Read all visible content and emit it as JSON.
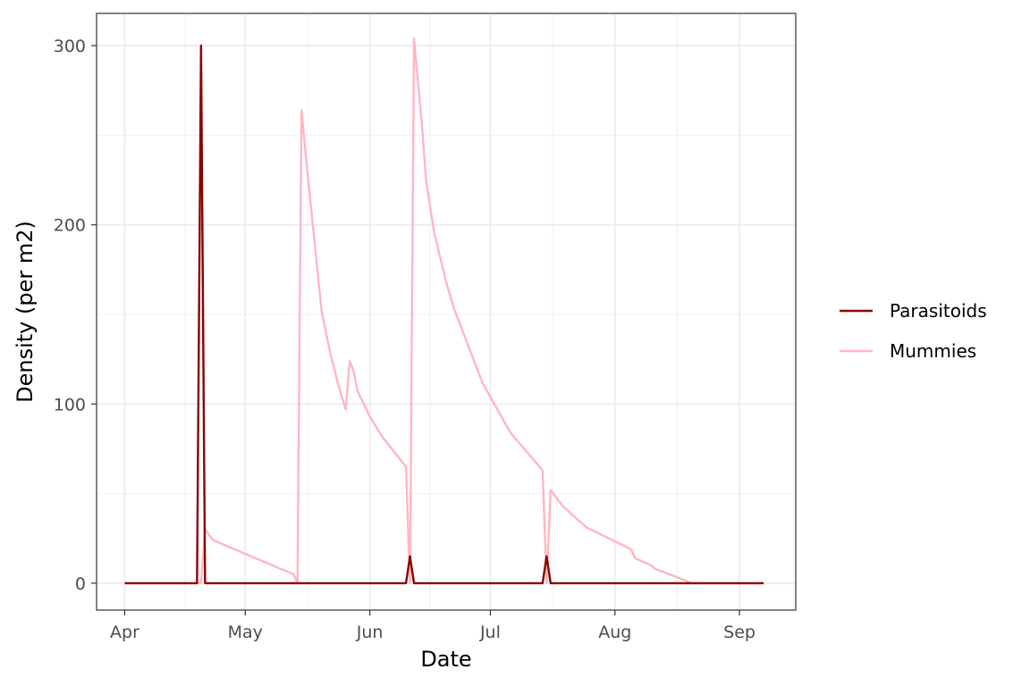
{
  "chart_data": {
    "type": "line",
    "xlabel": "Date",
    "ylabel": "Density (per m2)",
    "x_ticks": [
      {
        "label": "Apr",
        "date": "2021-04-01"
      },
      {
        "label": "May",
        "date": "2021-05-01"
      },
      {
        "label": "Jun",
        "date": "2021-06-01"
      },
      {
        "label": "Jul",
        "date": "2021-07-01"
      },
      {
        "label": "Aug",
        "date": "2021-08-01"
      },
      {
        "label": "Sep",
        "date": "2021-09-01"
      }
    ],
    "y_ticks": [
      0,
      100,
      200,
      300
    ],
    "xlim": [
      "2021-03-25",
      "2021-09-15"
    ],
    "ylim": [
      -15,
      318
    ],
    "grid": true,
    "legend_position": "right",
    "series": [
      {
        "name": "Parasitoids",
        "color": "#8B0000",
        "points": [
          [
            "2021-04-01",
            0
          ],
          [
            "2021-04-19",
            0
          ],
          [
            "2021-04-20",
            300
          ],
          [
            "2021-04-21",
            0
          ],
          [
            "2021-06-10",
            0
          ],
          [
            "2021-06-11",
            15
          ],
          [
            "2021-06-12",
            0
          ],
          [
            "2021-07-14",
            0
          ],
          [
            "2021-07-15",
            15
          ],
          [
            "2021-07-16",
            0
          ],
          [
            "2021-09-07",
            0
          ]
        ]
      },
      {
        "name": "Mummies",
        "color": "#FFB6C1",
        "points": [
          [
            "2021-04-01",
            0
          ],
          [
            "2021-04-20",
            0
          ],
          [
            "2021-04-21",
            30
          ],
          [
            "2021-04-23",
            24
          ],
          [
            "2021-05-13",
            5
          ],
          [
            "2021-05-14",
            0
          ],
          [
            "2021-05-15",
            264
          ],
          [
            "2021-05-16",
            240
          ],
          [
            "2021-05-18",
            196
          ],
          [
            "2021-05-20",
            152
          ],
          [
            "2021-05-22",
            130
          ],
          [
            "2021-05-24",
            112
          ],
          [
            "2021-05-26",
            97
          ],
          [
            "2021-05-27",
            124
          ],
          [
            "2021-05-28",
            118
          ],
          [
            "2021-05-29",
            107
          ],
          [
            "2021-06-01",
            93
          ],
          [
            "2021-06-04",
            82
          ],
          [
            "2021-06-10",
            65
          ],
          [
            "2021-06-11",
            0
          ],
          [
            "2021-06-12",
            304
          ],
          [
            "2021-06-14",
            255
          ],
          [
            "2021-06-15",
            225
          ],
          [
            "2021-06-17",
            196
          ],
          [
            "2021-06-20",
            168
          ],
          [
            "2021-06-22",
            153
          ],
          [
            "2021-06-29",
            112
          ],
          [
            "2021-07-06",
            84
          ],
          [
            "2021-07-14",
            63
          ],
          [
            "2021-07-15",
            0
          ],
          [
            "2021-07-16",
            52
          ],
          [
            "2021-07-19",
            43
          ],
          [
            "2021-07-25",
            31
          ],
          [
            "2021-08-05",
            19
          ],
          [
            "2021-08-06",
            14
          ],
          [
            "2021-08-10",
            10
          ],
          [
            "2021-08-11",
            8
          ],
          [
            "2021-08-18",
            2
          ],
          [
            "2021-08-20",
            0
          ],
          [
            "2021-09-07",
            0
          ]
        ]
      }
    ]
  }
}
